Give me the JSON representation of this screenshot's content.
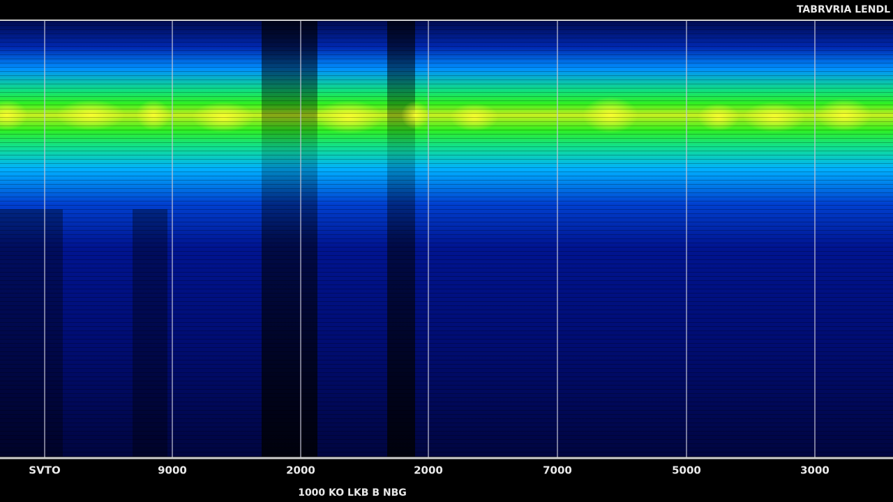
{
  "header": {
    "title": "TABRVRIA LENDL"
  },
  "axis": {
    "tick_labels": [
      "SVTO",
      "9000",
      "2000",
      "2000",
      "7000",
      "5000",
      "3000"
    ],
    "label": "1000  KO LKB B  NBG"
  }
}
